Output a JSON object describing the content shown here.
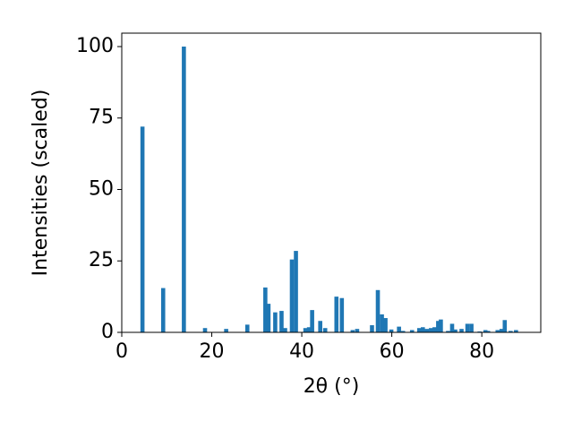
{
  "chart_data": {
    "type": "bar",
    "x_label": "2θ (°)",
    "y_label": "Intensities (scaled)",
    "x": [
      4.6,
      9.2,
      13.8,
      18.5,
      23.2,
      27.9,
      31.9,
      32.6,
      34.1,
      35.5,
      36.3,
      37.8,
      38.7,
      40.8,
      41.6,
      42.3,
      44.1,
      45.2,
      47.7,
      48.9,
      51.3,
      52.3,
      55.6,
      56.9,
      57.8,
      58.6,
      59.9,
      61.6,
      62.5,
      64.5,
      66.1,
      66.9,
      67.8,
      68.7,
      69.5,
      70.3,
      70.9,
      72.5,
      73.4,
      74.1,
      75.5,
      76.8,
      77.7,
      79.5,
      80.8,
      81.4,
      83.5,
      84.4,
      85.1,
      86.4,
      87.6
    ],
    "values": [
      72,
      15.5,
      100,
      1.5,
      1.2,
      2.7,
      15.7,
      10,
      7,
      7.5,
      1.5,
      25.5,
      28.5,
      1.5,
      1.8,
      7.8,
      4,
      1.5,
      12.5,
      12,
      0.8,
      1.2,
      2.5,
      14.8,
      6.3,
      5,
      1,
      2,
      0.5,
      0.8,
      1.5,
      1.8,
      1.2,
      1.5,
      1.8,
      4,
      4.5,
      0.5,
      3,
      1,
      1.2,
      3,
      3,
      0.3,
      0.8,
      0.5,
      0.8,
      1.2,
      4.3,
      0.5,
      0.8
    ],
    "color": "#1f77b4",
    "xlim": [
      0,
      93.1
    ],
    "xticks": [
      0,
      20,
      40,
      60,
      80
    ],
    "ylim": [
      0,
      104.7
    ],
    "yticks": [
      0,
      25,
      50,
      75,
      100
    ]
  }
}
